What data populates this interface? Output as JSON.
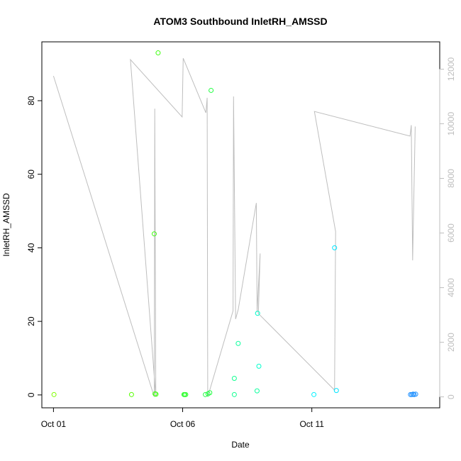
{
  "chart_data": {
    "type": "scatter",
    "title": "ATOM3 Southbound InletRH_AMSSD",
    "xlabel": "Date",
    "ylabel": "InletRH_AMSSD",
    "x_ticks": [
      {
        "day": 1,
        "label": "Oct 01"
      },
      {
        "day": 6,
        "label": "Oct 06"
      },
      {
        "day": 11,
        "label": "Oct 11"
      }
    ],
    "xlim_days": [
      0.55,
      15.95
    ],
    "ylim": [
      -3.5,
      96
    ],
    "y_ticks": [
      0,
      20,
      40,
      60,
      80
    ],
    "y2lim": [
      -400,
      13000
    ],
    "y2_ticks": [
      0,
      2000,
      4000,
      6000,
      8000,
      10000,
      12000
    ],
    "line_color": "#bebebe",
    "scatter": [
      {
        "x": 1.02,
        "y": 0.1,
        "color": "#7fff00"
      },
      {
        "x": 4.02,
        "y": 0.1,
        "color": "#55ff00"
      },
      {
        "x": 4.9,
        "y": 43.8,
        "color": "#3fff10"
      },
      {
        "x": 4.93,
        "y": 0.3,
        "color": "#3fff10"
      },
      {
        "x": 4.97,
        "y": 0.2,
        "color": "#3fff10"
      },
      {
        "x": 5.05,
        "y": 93.0,
        "color": "#3fff10"
      },
      {
        "x": 6.05,
        "y": 0.1,
        "color": "#2bff2b"
      },
      {
        "x": 6.08,
        "y": 0.1,
        "color": "#2bff2b"
      },
      {
        "x": 6.12,
        "y": 0.1,
        "color": "#2bff2b"
      },
      {
        "x": 6.88,
        "y": 0.1,
        "color": "#20ff40"
      },
      {
        "x": 6.98,
        "y": 0.3,
        "color": "#20ff40"
      },
      {
        "x": 7.05,
        "y": 0.6,
        "color": "#20ff40"
      },
      {
        "x": 7.1,
        "y": 82.8,
        "color": "#20ff40"
      },
      {
        "x": 8.0,
        "y": 0.1,
        "color": "#10ff90"
      },
      {
        "x": 8.0,
        "y": 4.5,
        "color": "#10ff90"
      },
      {
        "x": 8.15,
        "y": 14.0,
        "color": "#10ffa0"
      },
      {
        "x": 8.88,
        "y": 1.1,
        "color": "#10ffa0"
      },
      {
        "x": 8.9,
        "y": 22.2,
        "color": "#00ffcc"
      },
      {
        "x": 8.95,
        "y": 7.8,
        "color": "#00ffcc"
      },
      {
        "x": 11.08,
        "y": 0.1,
        "color": "#00f0ff"
      },
      {
        "x": 11.88,
        "y": 40.0,
        "color": "#00e5ff"
      },
      {
        "x": 11.95,
        "y": 1.2,
        "color": "#00e5ff"
      },
      {
        "x": 14.82,
        "y": 0.1,
        "color": "#1e90ff"
      },
      {
        "x": 14.87,
        "y": 0.1,
        "color": "#1e90ff"
      },
      {
        "x": 14.92,
        "y": 0.2,
        "color": "#1e90ff"
      },
      {
        "x": 14.96,
        "y": 0.1,
        "color": "#1e90ff"
      },
      {
        "x": 15.02,
        "y": 0.2,
        "color": "#1e90ff"
      }
    ],
    "line": [
      {
        "x": 1.0,
        "y2": 11750
      },
      {
        "x": 4.9,
        "y2": 0
      },
      {
        "x": 4.92,
        "y2": 10550
      },
      {
        "x": 4.96,
        "y2": 0
      },
      {
        "x": 3.98,
        "y2": 12350
      },
      {
        "x": 5.98,
        "y2": 10250
      },
      {
        "x": 6.02,
        "y2": 12400
      },
      {
        "x": 6.9,
        "y2": 10400
      },
      {
        "x": 6.95,
        "y2": 10950
      },
      {
        "x": 6.97,
        "y2": 0
      },
      {
        "x": 7.95,
        "y2": 3150
      },
      {
        "x": 7.97,
        "y2": 11000
      },
      {
        "x": 8.05,
        "y2": 2850
      },
      {
        "x": 8.15,
        "y2": 3200
      },
      {
        "x": 8.85,
        "y2": 7100
      },
      {
        "x": 8.88,
        "y2": 3100
      },
      {
        "x": 9.0,
        "y2": 5250
      },
      {
        "x": 8.93,
        "y2": 3050
      },
      {
        "x": 11.88,
        "y2": 250
      },
      {
        "x": 11.92,
        "y2": 6050
      },
      {
        "x": 11.1,
        "y2": 10450
      },
      {
        "x": 14.8,
        "y2": 9550
      },
      {
        "x": 14.85,
        "y2": 9950
      },
      {
        "x": 14.9,
        "y2": 5000
      },
      {
        "x": 15.0,
        "y2": 9900
      }
    ]
  }
}
